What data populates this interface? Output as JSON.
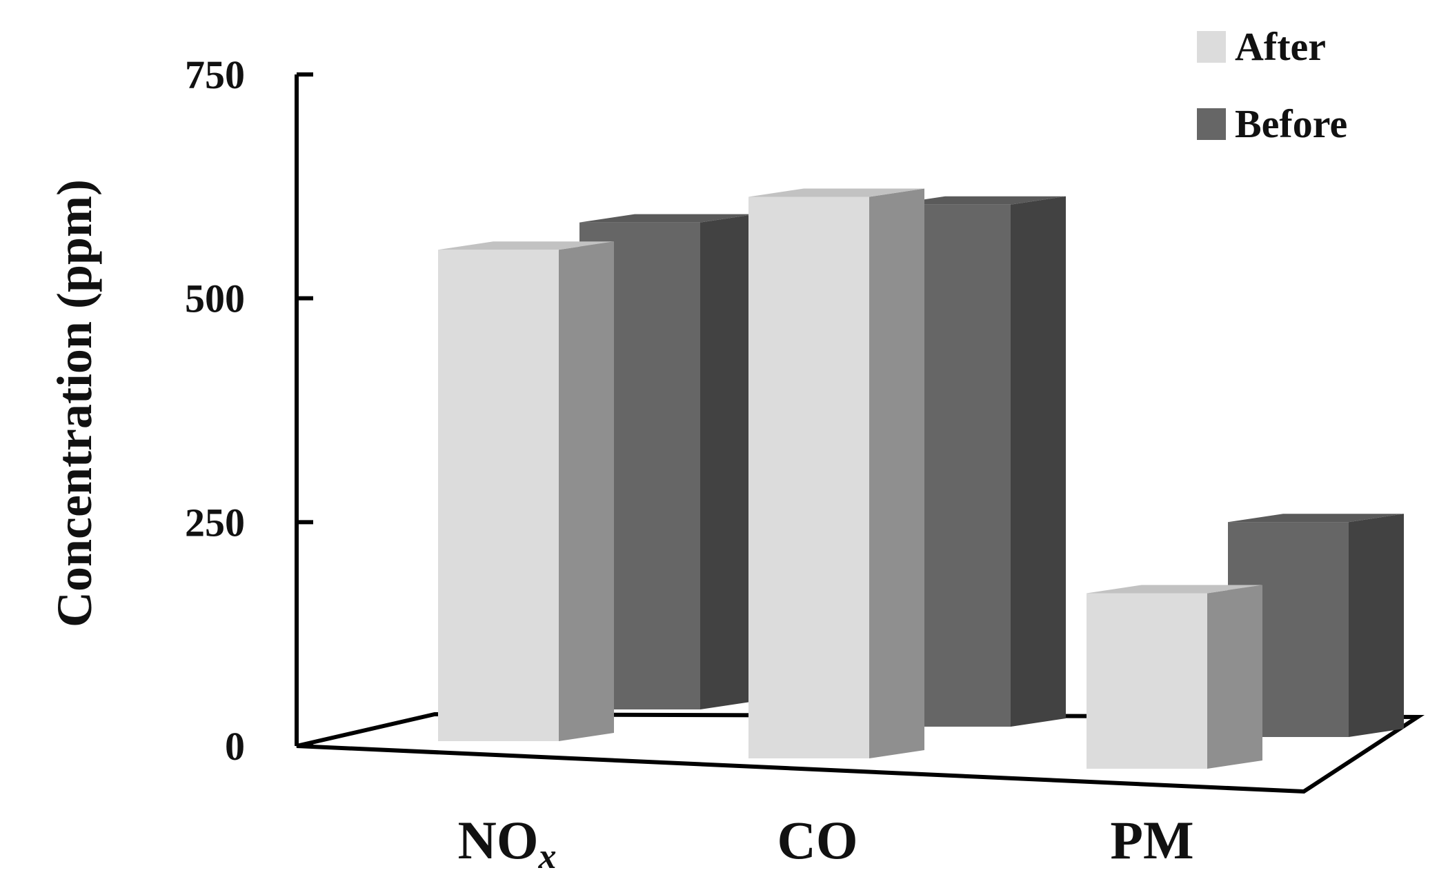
{
  "chart_data": {
    "type": "bar",
    "style": "3d",
    "title": "",
    "xlabel": "",
    "ylabel": "Concentration (ppm)",
    "ylim": [
      0,
      750
    ],
    "yticks": [
      0,
      250,
      500,
      750
    ],
    "categories": [
      {
        "main": "NO",
        "sub": "x"
      },
      {
        "main": "CO",
        "sub": ""
      },
      {
        "main": "PM",
        "sub": ""
      }
    ],
    "series": [
      {
        "name": "After",
        "values": [
          560,
          640,
          200
        ],
        "color": "#dcdcdc"
      },
      {
        "name": "Before",
        "values": [
          555,
          595,
          245
        ],
        "color": "#666666"
      }
    ],
    "legend_position": "top-right",
    "grid": false
  }
}
